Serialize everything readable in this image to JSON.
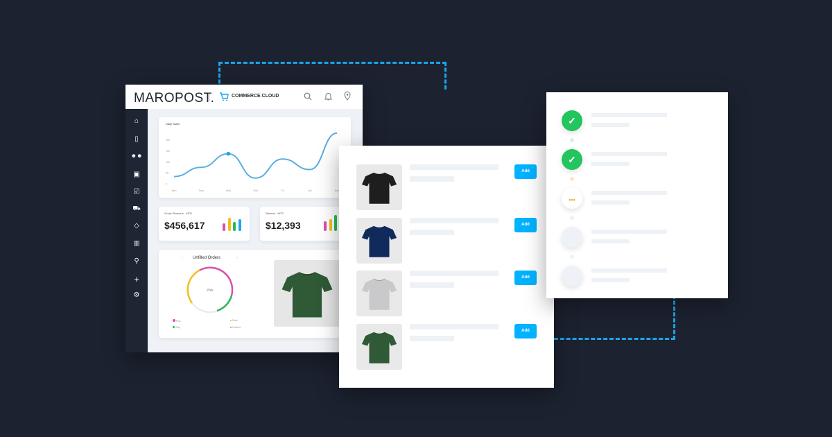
{
  "header": {
    "brand": "MAROPOST.",
    "product": "COMMERCE CLOUD",
    "icons": [
      "search-icon",
      "bell-icon",
      "location-pin-icon"
    ]
  },
  "sidebar": {
    "icons": [
      "home-icon",
      "document-icon",
      "users-icon",
      "gift-icon",
      "clipboard-check-icon",
      "truck-icon",
      "tag-icon",
      "bar-chart-icon",
      "search-icon",
      "plus-icon",
      "gear-icon"
    ]
  },
  "chart_data": {
    "type": "line",
    "title": "Daily Sales",
    "categories": [
      "Mon",
      "Tues",
      "Wed",
      "Thur",
      "Fri",
      "Sat",
      "Sun"
    ],
    "values": [
      33,
      75,
      137,
      26,
      113,
      65,
      231
    ],
    "yticks": [
      "0",
      "50",
      "100",
      "150",
      "200"
    ],
    "ylim": [
      0,
      240
    ],
    "highlight_index": 2,
    "color": "#5aaee0"
  },
  "cards": [
    {
      "label": "Gross Revenue - MTD",
      "value": "$456,617",
      "bars": [
        {
          "color": "#d94fb0",
          "value": 0.55
        },
        {
          "color": "#f2c01e",
          "value": 0.95
        },
        {
          "color": "#27b85a",
          "value": 0.65
        },
        {
          "color": "#1aa6ea",
          "value": 0.85
        }
      ]
    },
    {
      "label": "Returns - MTD",
      "value": "$12,393",
      "bars": [
        {
          "color": "#d94fb0",
          "value": 0.6
        },
        {
          "color": "#f2c01e",
          "value": 0.75
        },
        {
          "color": "#27b85a",
          "value": 1.0
        },
        {
          "color": "#1aa6ea",
          "value": 0.7
        }
      ]
    }
  ],
  "orders": {
    "title": "Unfilled Orders",
    "center": "Pick",
    "legend": [
      {
        "label": "Pick",
        "color": "#d94fb0"
      },
      {
        "label": "Pack",
        "color": "#f2c01e"
      },
      {
        "label": "Ship",
        "color": "#27b85a"
      },
      {
        "label": "Unfilled",
        "color": "#e8edf2"
      }
    ],
    "shirt_color": "#2f5a35"
  },
  "products": [
    {
      "color": "#1e1e1e",
      "button": "Add"
    },
    {
      "color": "#102a5c",
      "button": "Add"
    },
    {
      "color": "#c9c9cb",
      "button": "Add"
    },
    {
      "color": "#2f5a35",
      "button": "Add"
    }
  ],
  "steps": [
    {
      "status": "complete",
      "icon": "check-icon"
    },
    {
      "status": "complete",
      "icon": "check-icon"
    },
    {
      "status": "in-progress",
      "icon": "ellipsis-icon"
    },
    {
      "status": "pending"
    },
    {
      "status": "pending"
    }
  ],
  "colors": {
    "background": "#1c2230",
    "accent": "#00b2ff",
    "success": "#22c55e",
    "warning": "#f2b31e"
  }
}
